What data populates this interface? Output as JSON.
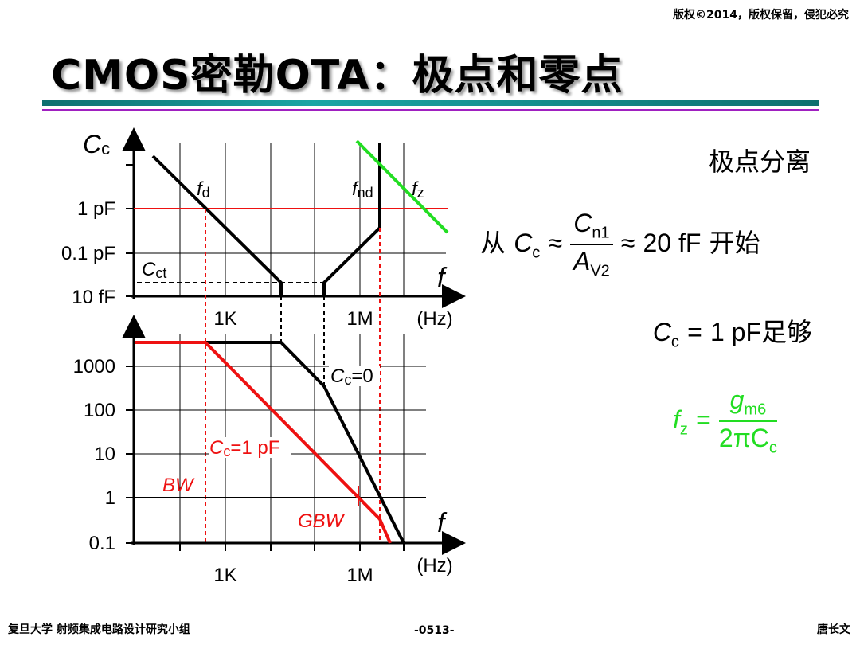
{
  "header": {
    "copyright": "版权©2014，版权保留，侵犯必究",
    "title": "CMOS密勒OTA：极点和零点"
  },
  "colors": {
    "accent_teal": "#1aa5a5",
    "accent_purple": "#a020c0",
    "red": "#ee1111",
    "green": "#22dd22",
    "black": "#000000"
  },
  "top_plot": {
    "y_axis_label": "C",
    "y_axis_sub": "c",
    "y_ticks": [
      "1 pF",
      "0.1 pF",
      "10 fF"
    ],
    "x_ticks": [
      "1K",
      "1M",
      "(Hz)"
    ],
    "x_axis_label": "f",
    "annotations": {
      "fd": "f",
      "fd_sub": "d",
      "fnd": "f",
      "fnd_sub": "nd",
      "fz": "f",
      "fz_sub": "z",
      "cct": "C",
      "cct_sub": "ct"
    }
  },
  "bottom_plot": {
    "y_ticks": [
      "1000",
      "100",
      "10",
      "1",
      "0.1"
    ],
    "x_ticks": [
      "1K",
      "1M",
      "(Hz)"
    ],
    "x_axis_label": "f",
    "labels": {
      "cc0": "C",
      "cc0_sub": "c",
      "cc0_val": "=0",
      "cc1": "C",
      "cc1_sub": "c",
      "cc1_val": "=1 pF",
      "bw": "BW",
      "gbw": "GBW"
    }
  },
  "right_panel": {
    "pole_split": "极点分离",
    "from": "从",
    "cc": "C",
    "cc_sub": "c",
    "approx": "≈",
    "cn": "C",
    "cn_sub": "n1",
    "av": "A",
    "av_sub": "V2",
    "approx2": "≈",
    "value": "20 fF",
    "start": "开始",
    "cc2": "C",
    "cc2_sub": "c",
    "eq": "=",
    "cc_value": "1 pF",
    "enough": "足够",
    "fz": "f",
    "fz_sub": "z",
    "eq2": "=",
    "gm": "g",
    "gm_sub": "m6",
    "two_pi": "2πC",
    "two_pi_sub": "c"
  },
  "footer": {
    "left": "复旦大学   射频集成电路设计研究小组",
    "center": "-0513-",
    "right": "唐长文"
  }
}
